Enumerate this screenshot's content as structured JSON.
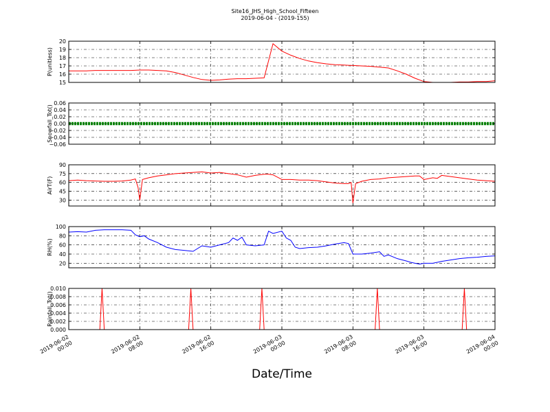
{
  "figure": {
    "title_line1": "Site16_JHS_High_School_Fifteen",
    "title_line2": "2019-06-04 - (2019-155)",
    "xlabel": "Date/Time"
  },
  "chart_data": [
    {
      "type": "line",
      "ylabel": "P(unitless)",
      "ylim": [
        15,
        20
      ],
      "yticks": [
        15,
        16,
        17,
        18,
        19,
        20
      ],
      "ytick_labels": [
        "15",
        "16",
        "17",
        "18",
        "19",
        "20"
      ],
      "grid": true,
      "series": [
        {
          "color": "#ff0000",
          "x": [
            0,
            1,
            2,
            3,
            4,
            5,
            6,
            7,
            8,
            9,
            10,
            11,
            12,
            13,
            14,
            15,
            16,
            17,
            18,
            19,
            20,
            21,
            22,
            23,
            24,
            25,
            26,
            27,
            28,
            29,
            30,
            31,
            32,
            33,
            34,
            35,
            36,
            37,
            38,
            39,
            40,
            41,
            42,
            43,
            44,
            45,
            46,
            47,
            48
          ],
          "y": [
            16.4,
            16.4,
            16.4,
            16.45,
            16.45,
            16.45,
            16.45,
            16.45,
            16.5,
            16.5,
            16.45,
            16.4,
            16.2,
            15.9,
            15.6,
            15.35,
            15.25,
            15.3,
            15.4,
            15.45,
            15.45,
            15.5,
            15.55,
            19.7,
            18.8,
            18.3,
            17.9,
            17.6,
            17.4,
            17.25,
            17.15,
            17.1,
            17.05,
            17.0,
            16.95,
            16.85,
            16.75,
            16.4,
            16.0,
            15.5,
            15.1,
            15.0,
            15.0,
            15.0,
            15.05,
            15.05,
            15.1,
            15.1,
            15.2
          ]
        }
      ]
    },
    {
      "type": "line",
      "ylabel": "Snowfall_Tot()",
      "ylim": [
        -0.06,
        0.06
      ],
      "yticks": [
        -0.06,
        -0.04,
        -0.02,
        0.0,
        0.02,
        0.04,
        0.06
      ],
      "ytick_labels": [
        "−0.06",
        "−0.04",
        "−0.02",
        "0.00",
        "0.02",
        "0.04",
        "0.06"
      ],
      "grid": true,
      "series": [
        {
          "color": "#008000",
          "x": [
            0,
            48
          ],
          "y": [
            0,
            0
          ]
        }
      ]
    },
    {
      "type": "line",
      "ylabel": "AirT(F)",
      "ylim": [
        20,
        90
      ],
      "yticks": [
        30,
        45,
        60,
        75,
        90
      ],
      "ytick_labels": [
        "30",
        "45",
        "60",
        "75",
        "90"
      ],
      "grid": true,
      "series": [
        {
          "color": "#ff0000",
          "x": [
            0,
            1,
            2,
            3,
            4,
            5,
            6,
            7,
            7.5,
            7.8,
            8.0,
            8.3,
            9,
            10,
            11,
            12,
            13,
            14,
            15,
            16,
            17,
            18,
            19,
            20,
            21,
            22,
            22.5,
            23,
            24,
            25,
            26,
            27,
            28,
            29,
            30,
            31,
            31.5,
            31.8,
            32.0,
            32.3,
            33,
            34,
            35,
            36,
            37,
            38,
            39,
            39.5,
            40,
            41,
            41.5,
            42,
            43,
            44,
            45,
            46,
            47,
            48
          ],
          "y": [
            63,
            64,
            63,
            62.5,
            62,
            62,
            62.5,
            64,
            66,
            52,
            30,
            65,
            68,
            71,
            73,
            75,
            76,
            77,
            78,
            76,
            77,
            75,
            73,
            69,
            72,
            74,
            74,
            73,
            65,
            65,
            64,
            64,
            63,
            61,
            59,
            58,
            58,
            60,
            25,
            58,
            62,
            65,
            66,
            68,
            69,
            70,
            71,
            71,
            65,
            68,
            67,
            72,
            70,
            68,
            66,
            64,
            63,
            62
          ]
        }
      ]
    },
    {
      "type": "line",
      "ylabel": "RH(%)",
      "ylim": [
        10,
        100
      ],
      "yticks": [
        20,
        40,
        60,
        80,
        100
      ],
      "ytick_labels": [
        "20",
        "40",
        "60",
        "80",
        "100"
      ],
      "grid": true,
      "series": [
        {
          "color": "#0000ff",
          "x": [
            0,
            1,
            2,
            3,
            4,
            5,
            6,
            7,
            7.5,
            8,
            8.5,
            9,
            10,
            11,
            12,
            13,
            14,
            15,
            16,
            17,
            18,
            18.5,
            19,
            19.5,
            20,
            21,
            22,
            22.5,
            23,
            24,
            24.5,
            25,
            25.5,
            26,
            27,
            28,
            29,
            30,
            31,
            31.5,
            32,
            33,
            34,
            35,
            35.5,
            36,
            37,
            38,
            38.5,
            39,
            39.5,
            40,
            41,
            42,
            43,
            44,
            45,
            46,
            47,
            48
          ],
          "y": [
            88,
            89,
            88,
            92,
            93,
            93,
            93,
            92,
            82,
            78,
            80,
            73,
            65,
            55,
            50,
            48,
            46,
            58,
            55,
            60,
            65,
            75,
            70,
            77,
            60,
            58,
            60,
            90,
            85,
            90,
            75,
            70,
            55,
            52,
            54,
            55,
            58,
            62,
            65,
            63,
            40,
            40,
            42,
            45,
            35,
            38,
            30,
            25,
            22,
            20,
            18,
            20,
            20,
            24,
            27,
            30,
            32,
            33,
            35,
            36
          ]
        }
      ]
    },
    {
      "type": "line",
      "ylabel": "Rainfall_Tot()",
      "ylim": [
        0,
        0.01
      ],
      "yticks": [
        0.0,
        0.002,
        0.004,
        0.006,
        0.008,
        0.01
      ],
      "ytick_labels": [
        "0.000",
        "0.002",
        "0.004",
        "0.006",
        "0.008",
        "0.010"
      ],
      "grid": true,
      "series": [
        {
          "color": "#ff0000",
          "x": [
            0,
            3.5,
            3.75,
            4.0,
            13.5,
            13.75,
            14.0,
            21.5,
            21.75,
            22.0,
            34.5,
            34.75,
            35.0,
            44.3,
            44.55,
            44.8,
            48
          ],
          "y": [
            0,
            0,
            0.01,
            0,
            0,
            0.01,
            0,
            0,
            0.01,
            0,
            0,
            0.01,
            0,
            0,
            0.01,
            0,
            0
          ]
        }
      ]
    }
  ],
  "x_axis": {
    "x_range_hours": [
      0,
      48
    ],
    "ticks_hours": [
      0,
      8,
      16,
      24,
      32,
      40,
      48
    ],
    "tick_labels": [
      [
        "2019-06-02",
        "00:00"
      ],
      [
        "2019-06-02",
        "08:00"
      ],
      [
        "2019-06-02",
        "16:00"
      ],
      [
        "2019-06-03",
        "00:00"
      ],
      [
        "2019-06-03",
        "08:00"
      ],
      [
        "2019-06-03",
        "16:00"
      ],
      [
        "2019-06-04",
        "00:00"
      ]
    ]
  }
}
